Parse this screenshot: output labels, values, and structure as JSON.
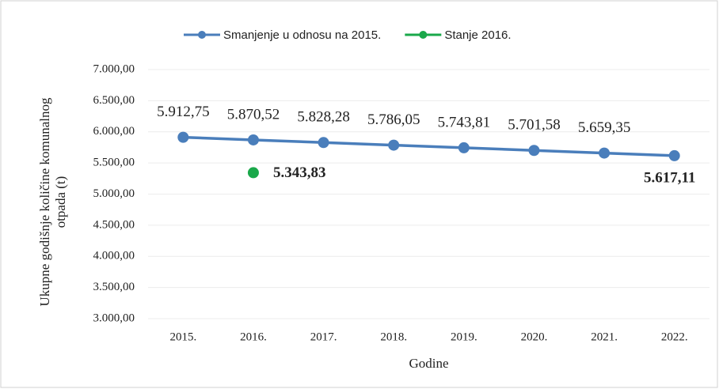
{
  "chart_data": {
    "type": "line",
    "categories": [
      "2015.",
      "2016.",
      "2017.",
      "2018.",
      "2019.",
      "2020.",
      "2021.",
      "2022."
    ],
    "series": [
      {
        "name": "Smanjenje u odnosu na 2015.",
        "color": "#4a7ebb",
        "values": [
          5912.75,
          5870.52,
          5828.28,
          5786.05,
          5743.81,
          5701.58,
          5659.35,
          5617.11
        ],
        "value_labels": [
          "5.912,75",
          "5.870,52",
          "5.828,28",
          "5.786,05",
          "5.743,81",
          "5.701,58",
          "5.659,35",
          "5.617,11"
        ]
      },
      {
        "name": "Stanje 2016.",
        "color": "#1aa84a",
        "values": [
          null,
          5343.83,
          null,
          null,
          null,
          null,
          null,
          null
        ],
        "value_labels": [
          null,
          "5.343,83",
          null,
          null,
          null,
          null,
          null,
          null
        ]
      }
    ],
    "ylim": [
      3000,
      7000
    ],
    "yticks": [
      {
        "value": 3000,
        "label": "3.000,00"
      },
      {
        "value": 3500,
        "label": "3.500,00"
      },
      {
        "value": 4000,
        "label": "4.000,00"
      },
      {
        "value": 4500,
        "label": "4.500,00"
      },
      {
        "value": 5000,
        "label": "5.000,00"
      },
      {
        "value": 5500,
        "label": "5.500,00"
      },
      {
        "value": 6000,
        "label": "6.000,00"
      },
      {
        "value": 6500,
        "label": "6.500,00"
      },
      {
        "value": 7000,
        "label": "7.000,00"
      }
    ],
    "y_label_lines": [
      "Ukupne godišnje količine komunalnog",
      "otpada (t)"
    ],
    "x_label": "Godine",
    "grid": true,
    "legend": "top"
  }
}
